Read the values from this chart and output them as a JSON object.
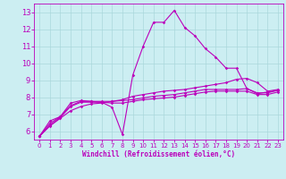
{
  "xlabel": "Windchill (Refroidissement éolien,°C)",
  "xlim": [
    -0.5,
    23.5
  ],
  "ylim": [
    5.5,
    13.5
  ],
  "yticks": [
    6,
    7,
    8,
    9,
    10,
    11,
    12,
    13
  ],
  "xticks": [
    0,
    1,
    2,
    3,
    4,
    5,
    6,
    7,
    8,
    9,
    10,
    11,
    12,
    13,
    14,
    15,
    16,
    17,
    18,
    19,
    20,
    21,
    22,
    23
  ],
  "bg_color": "#cceef2",
  "line_color": "#bb00bb",
  "grid_color": "#aad8dc",
  "lines": [
    [
      5.7,
      6.6,
      6.85,
      7.65,
      7.8,
      7.75,
      7.7,
      7.4,
      5.8,
      9.3,
      11.0,
      12.4,
      12.4,
      13.1,
      12.1,
      11.6,
      10.85,
      10.35,
      9.7,
      9.7,
      8.5,
      8.2,
      8.3,
      8.4
    ],
    [
      5.7,
      6.3,
      6.75,
      7.2,
      7.45,
      7.6,
      7.65,
      7.75,
      7.85,
      8.05,
      8.15,
      8.25,
      8.35,
      8.4,
      8.45,
      8.55,
      8.65,
      8.75,
      8.85,
      9.05,
      9.1,
      8.85,
      8.35,
      8.45
    ],
    [
      5.7,
      6.45,
      6.85,
      7.5,
      7.75,
      7.75,
      7.75,
      7.75,
      7.8,
      7.85,
      7.95,
      8.05,
      8.1,
      8.15,
      8.25,
      8.35,
      8.45,
      8.45,
      8.45,
      8.45,
      8.5,
      8.25,
      8.25,
      8.4
    ],
    [
      5.7,
      6.35,
      6.8,
      7.45,
      7.7,
      7.7,
      7.7,
      7.65,
      7.65,
      7.75,
      7.85,
      7.9,
      7.95,
      8.0,
      8.1,
      8.2,
      8.3,
      8.35,
      8.35,
      8.35,
      8.35,
      8.15,
      8.15,
      8.3
    ]
  ]
}
